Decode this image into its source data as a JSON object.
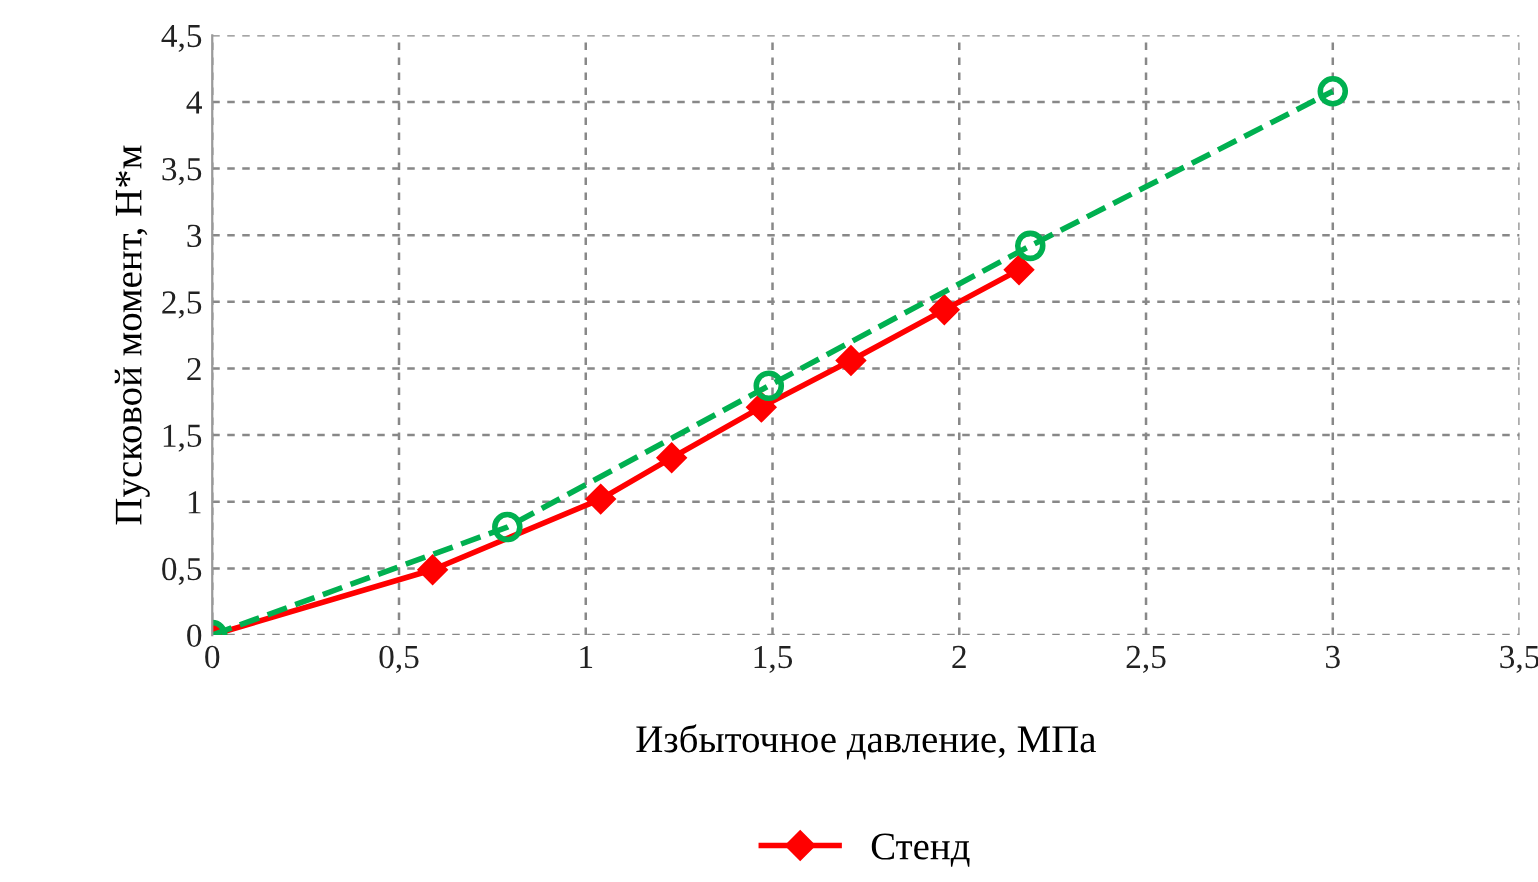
{
  "chart_data": {
    "type": "line",
    "xlabel": "Избыточное давление, МПа",
    "ylabel": "Пусковой момент, Н*м",
    "xlim": [
      0,
      3.5
    ],
    "ylim": [
      0,
      4.5
    ],
    "xticks": [
      0,
      {
        "value": 0.5,
        "label": "0,5"
      },
      1,
      {
        "value": 1.5,
        "label": "1,5"
      },
      2,
      {
        "value": 2.5,
        "label": "2,5"
      },
      3,
      {
        "value": 3.5,
        "label": "3,5"
      }
    ],
    "yticks": [
      0,
      {
        "value": 0.5,
        "label": "0,5"
      },
      1,
      {
        "value": 1.5,
        "label": "1,5"
      },
      2,
      {
        "value": 2.5,
        "label": "2,5"
      },
      3,
      {
        "value": 3.5,
        "label": "3,5"
      },
      4,
      {
        "value": 4.5,
        "label": "4,5"
      }
    ],
    "grid": true,
    "legend": "bottom",
    "series": [
      {
        "name": "Стенд",
        "color": "#ff0000",
        "marker": "diamond",
        "line_style": "solid",
        "x": [
          0,
          0.59,
          1.04,
          1.23,
          1.47,
          1.71,
          1.96,
          2.16
        ],
        "values": [
          0,
          0.49,
          1.02,
          1.33,
          1.71,
          2.06,
          2.44,
          2.74
        ]
      },
      {
        "color": "#00b050",
        "marker": "circle",
        "line_style": "dashed",
        "x": [
          0,
          0.79,
          1.49,
          2.19,
          3.0
        ],
        "values": [
          0,
          0.81,
          1.87,
          2.92,
          4.08
        ]
      }
    ]
  }
}
